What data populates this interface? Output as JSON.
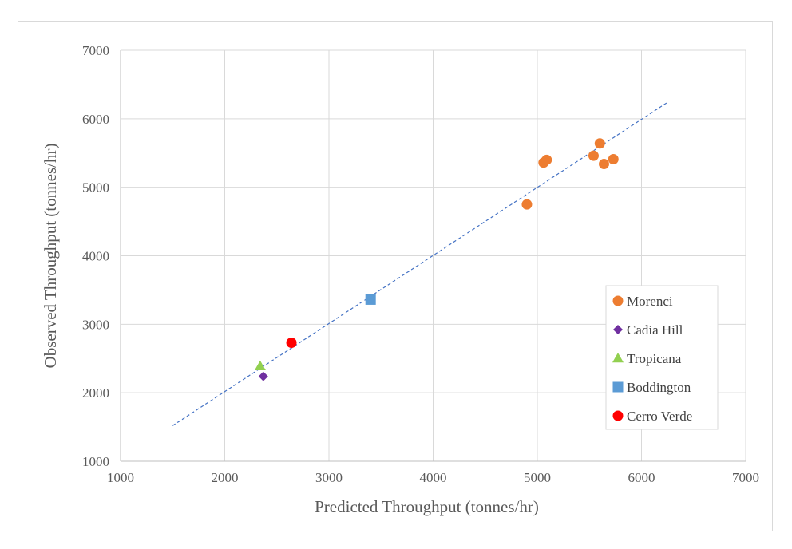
{
  "chart_data": {
    "type": "scatter",
    "title": "",
    "xlabel": "Predicted Throughput (tonnes/hr)",
    "ylabel": "Observed Throughput (tonnes/hr)",
    "xlim": [
      1000,
      7000
    ],
    "ylim": [
      1000,
      7000
    ],
    "xticks": [
      "1000",
      "2000",
      "3000",
      "4000",
      "5000",
      "6000",
      "7000"
    ],
    "yticks": [
      "1000",
      "2000",
      "3000",
      "4000",
      "5000",
      "6000",
      "7000"
    ],
    "grid": true,
    "legend_position": "right",
    "series": [
      {
        "name": "Morenci",
        "marker": "circle",
        "color": "#ED7D31",
        "points": [
          [
            4900,
            4750
          ],
          [
            5060,
            5360
          ],
          [
            5090,
            5400
          ],
          [
            5540,
            5460
          ],
          [
            5600,
            5640
          ],
          [
            5640,
            5340
          ],
          [
            5730,
            5410
          ]
        ]
      },
      {
        "name": "Cadia Hill",
        "marker": "diamond",
        "color": "#7030A0",
        "points": [
          [
            2370,
            2240
          ]
        ]
      },
      {
        "name": "Tropicana",
        "marker": "triangle",
        "color": "#92D050",
        "points": [
          [
            2340,
            2390
          ]
        ]
      },
      {
        "name": "Boddington",
        "marker": "square",
        "color": "#5B9BD5",
        "points": [
          [
            3400,
            3360
          ]
        ]
      },
      {
        "name": "Cerro Verde",
        "marker": "circle",
        "color": "#FF0000",
        "points": [
          [
            2640,
            2730
          ]
        ]
      }
    ],
    "reference_line": {
      "style": "dashed",
      "color": "#4472C4",
      "from": [
        1500,
        1520
      ],
      "to": [
        6250,
        6240
      ]
    }
  }
}
